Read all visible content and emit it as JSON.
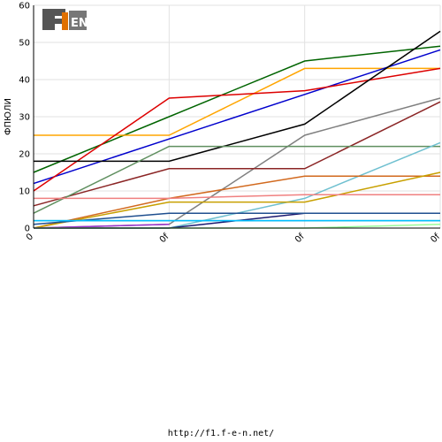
{
  "chart_data": {
    "type": "line",
    "ylabel": "ФПЮЛИ",
    "ylim": [
      0,
      60
    ],
    "y_ticks": [
      0,
      10,
      20,
      30,
      40,
      50,
      60
    ],
    "x_ticks": [
      "0",
      "0f",
      "0f",
      "0f"
    ],
    "grid": true,
    "series": [
      {
        "color": "#006400",
        "values": [
          15,
          30,
          45,
          49
        ]
      },
      {
        "color": "#ffa500",
        "values": [
          25,
          25,
          43,
          43
        ]
      },
      {
        "color": "#0000cd",
        "values": [
          12,
          24,
          36,
          48
        ]
      },
      {
        "color": "#dd0000",
        "values": [
          10,
          35,
          37,
          43
        ]
      },
      {
        "color": "#000000",
        "values": [
          18,
          18,
          28,
          53
        ]
      },
      {
        "color": "#808080",
        "values": [
          0,
          1,
          25,
          35
        ]
      },
      {
        "color": "#8b2525",
        "values": [
          6,
          16,
          16,
          34
        ]
      },
      {
        "color": "#5f8f5f",
        "values": [
          4,
          22,
          22,
          22
        ]
      },
      {
        "color": "#6fc0d0",
        "values": [
          0,
          0,
          8,
          23
        ]
      },
      {
        "color": "#d2691e",
        "values": [
          0,
          8,
          14,
          14
        ]
      },
      {
        "color": "#c8a000",
        "values": [
          0,
          7,
          7,
          15
        ]
      },
      {
        "color": "#f08080",
        "values": [
          8,
          8,
          9,
          9
        ]
      },
      {
        "color": "#191970",
        "values": [
          0,
          0,
          4,
          null
        ]
      },
      {
        "color": "#1f4f8f",
        "values": [
          1,
          4,
          4,
          4
        ]
      },
      {
        "color": "#2f9f9f",
        "values": [
          2,
          2,
          2,
          2
        ]
      },
      {
        "color": "#00bfff",
        "values": [
          2,
          2,
          2,
          2
        ]
      },
      {
        "color": "#9932cc",
        "values": [
          0,
          1,
          null,
          null
        ]
      },
      {
        "color": "#98fb98",
        "values": [
          0,
          0,
          0,
          1
        ]
      }
    ]
  },
  "logo": {
    "text": "F1EN"
  },
  "footer": {
    "url": "http://f1.f-e-n.net/"
  }
}
